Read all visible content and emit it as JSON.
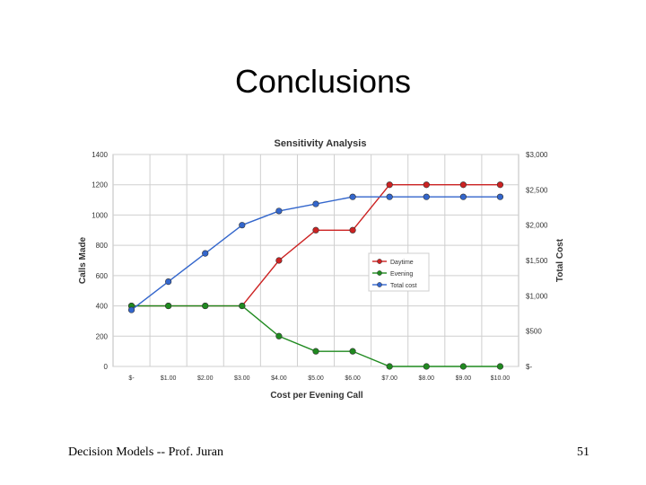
{
  "slide": {
    "title": "Conclusions",
    "footer_left": "Decision Models -- Prof. Juran",
    "page_number": "51"
  },
  "chart_data": {
    "type": "line",
    "title": "Sensitivity Analysis",
    "xlabel": "Cost per Evening Call",
    "ylabel": "Calls Made",
    "y2label": "Total Cost",
    "categories": [
      "$-",
      "$1.00",
      "$2.00",
      "$3.00",
      "$4.00",
      "$5.00",
      "$6.00",
      "$7.00",
      "$8.00",
      "$9.00",
      "$10.00"
    ],
    "ylim": [
      0,
      1400
    ],
    "yticks": [
      "0",
      "200",
      "400",
      "600",
      "800",
      "1000",
      "1200",
      "1400"
    ],
    "y2lim": [
      0,
      3000
    ],
    "y2ticks": [
      "$-",
      "$500",
      "$1,000",
      "$1,500",
      "$2,000",
      "$2,500",
      "$3,000"
    ],
    "grid": true,
    "legend_position": "right-middle",
    "series": [
      {
        "name": "Daytime",
        "axis": "left",
        "color": "#cc2222",
        "values": [
          400,
          400,
          400,
          400,
          700,
          900,
          900,
          1200,
          1200,
          1200,
          1200
        ]
      },
      {
        "name": "Evening",
        "axis": "left",
        "color": "#1f8a1f",
        "values": [
          400,
          400,
          400,
          400,
          200,
          100,
          100,
          0,
          0,
          0,
          0
        ]
      },
      {
        "name": "Total cost",
        "axis": "right",
        "color": "#3366cc",
        "values": [
          800,
          1200,
          1600,
          2000,
          2200,
          2300,
          2400,
          2400,
          2400,
          2400,
          2400
        ]
      }
    ]
  }
}
